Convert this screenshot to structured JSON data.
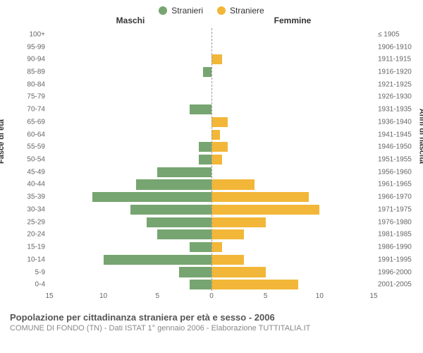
{
  "legend": {
    "male": {
      "label": "Stranieri",
      "color": "#77a571"
    },
    "female": {
      "label": "Straniere",
      "color": "#f2b738"
    }
  },
  "headers": {
    "male": "Maschi",
    "female": "Femmine"
  },
  "y_axis_left_title": "Fasce di età",
  "y_axis_right_title": "Anni di nascita",
  "chart": {
    "type": "population-pyramid",
    "x_max": 15,
    "x_ticks_left": [
      15,
      10,
      5,
      0
    ],
    "x_ticks_right": [
      0,
      5,
      10,
      15
    ],
    "bar_color_male": "#77a571",
    "bar_color_female": "#f2b738",
    "background_color": "#ffffff",
    "center_line_color": "#999999",
    "label_fontsize": 10,
    "rows": [
      {
        "age": "100+",
        "birth": "≤ 1905",
        "m": 0,
        "f": 0
      },
      {
        "age": "95-99",
        "birth": "1906-1910",
        "m": 0,
        "f": 0
      },
      {
        "age": "90-94",
        "birth": "1911-1915",
        "m": 0,
        "f": 1
      },
      {
        "age": "85-89",
        "birth": "1916-1920",
        "m": 0.8,
        "f": 0
      },
      {
        "age": "80-84",
        "birth": "1921-1925",
        "m": 0,
        "f": 0
      },
      {
        "age": "75-79",
        "birth": "1926-1930",
        "m": 0,
        "f": 0
      },
      {
        "age": "70-74",
        "birth": "1931-1935",
        "m": 2,
        "f": 0
      },
      {
        "age": "65-69",
        "birth": "1936-1940",
        "m": 0,
        "f": 1.5
      },
      {
        "age": "60-64",
        "birth": "1941-1945",
        "m": 0,
        "f": 0.8
      },
      {
        "age": "55-59",
        "birth": "1946-1950",
        "m": 1.2,
        "f": 1.5
      },
      {
        "age": "50-54",
        "birth": "1951-1955",
        "m": 1.2,
        "f": 1
      },
      {
        "age": "45-49",
        "birth": "1956-1960",
        "m": 5,
        "f": 0
      },
      {
        "age": "40-44",
        "birth": "1961-1965",
        "m": 7,
        "f": 4
      },
      {
        "age": "35-39",
        "birth": "1966-1970",
        "m": 11,
        "f": 9
      },
      {
        "age": "30-34",
        "birth": "1971-1975",
        "m": 7.5,
        "f": 10
      },
      {
        "age": "25-29",
        "birth": "1976-1980",
        "m": 6,
        "f": 5
      },
      {
        "age": "20-24",
        "birth": "1981-1985",
        "m": 5,
        "f": 3
      },
      {
        "age": "15-19",
        "birth": "1986-1990",
        "m": 2,
        "f": 1
      },
      {
        "age": "10-14",
        "birth": "1991-1995",
        "m": 10,
        "f": 3
      },
      {
        "age": "5-9",
        "birth": "1996-2000",
        "m": 3,
        "f": 5
      },
      {
        "age": "0-4",
        "birth": "2001-2005",
        "m": 2,
        "f": 8
      }
    ]
  },
  "footer": {
    "title": "Popolazione per cittadinanza straniera per età e sesso - 2006",
    "subtitle": "COMUNE DI FONDO (TN) - Dati ISTAT 1° gennaio 2006 - Elaborazione TUTTITALIA.IT"
  }
}
